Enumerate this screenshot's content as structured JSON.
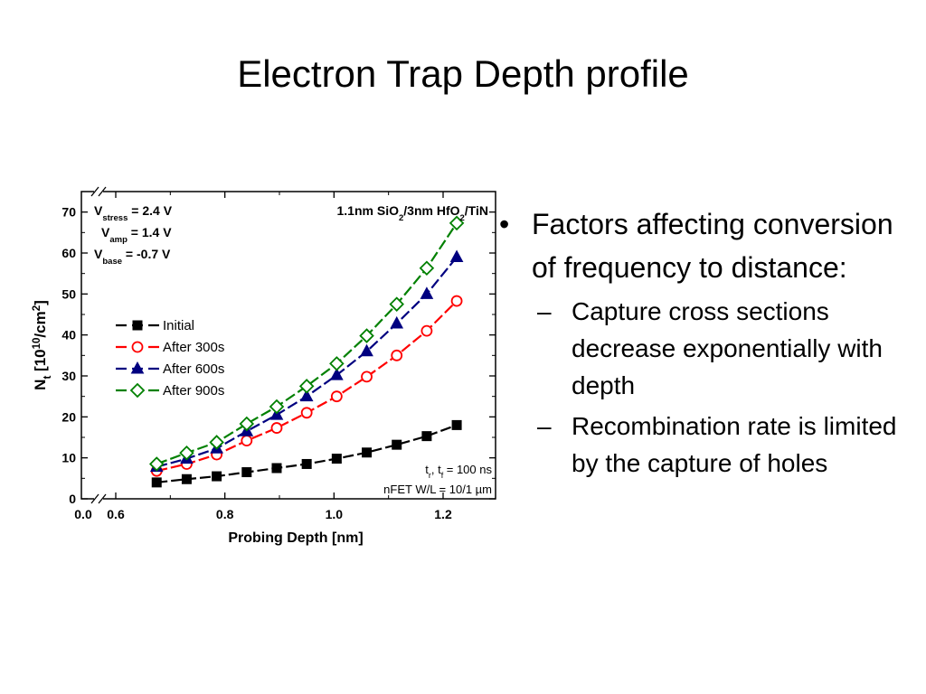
{
  "title": "Electron Trap Depth profile",
  "bullets": {
    "main": "Factors affecting conversion of frequency to distance:",
    "subs": [
      "Capture cross sections decrease exponentially with depth",
      "Recombination rate is limited by the capture of holes"
    ]
  },
  "chart_data": {
    "type": "line",
    "xlabel": "Probing Depth [nm]",
    "ylabel": {
      "main": "N",
      "sub": "t",
      "rest": " [10",
      "sup": "10",
      "unit": "/cm",
      "unit_sup": "2",
      "close": "]"
    },
    "xlim": [
      0.5,
      1.3
    ],
    "ylim": [
      0,
      75
    ],
    "x_axis_break": true,
    "y_axis_break": true,
    "x_ticks": [
      {
        "label": "0.0",
        "value": null
      },
      {
        "label": "0.6",
        "value": 0.6
      },
      {
        "label": "0.8",
        "value": 0.8
      },
      {
        "label": "1.0",
        "value": 1.0
      },
      {
        "label": "1.2",
        "value": 1.2
      }
    ],
    "y_ticks": [
      0,
      10,
      20,
      30,
      40,
      50,
      60,
      70
    ],
    "x": [
      0.675,
      0.73,
      0.785,
      0.84,
      0.895,
      0.95,
      1.005,
      1.06,
      1.115,
      1.17,
      1.225
    ],
    "series": [
      {
        "name": "Initial",
        "color": "#000000",
        "marker": "square-filled",
        "values": [
          4.0,
          4.8,
          5.5,
          6.5,
          7.5,
          8.5,
          9.8,
          11.3,
          13.2,
          15.3,
          18.0
        ]
      },
      {
        "name": "After 300s",
        "color": "#ff0000",
        "marker": "circle-open",
        "values": [
          6.8,
          8.5,
          10.8,
          14.2,
          17.3,
          21.0,
          25.0,
          29.8,
          35.0,
          41.0,
          48.3
        ]
      },
      {
        "name": "After 600s",
        "color": "#000080",
        "marker": "triangle-filled",
        "values": [
          7.8,
          9.8,
          12.3,
          16.5,
          20.5,
          25.0,
          30.2,
          36.0,
          42.8,
          50.0,
          59.0
        ]
      },
      {
        "name": "After 900s",
        "color": "#008000",
        "marker": "diamond-open",
        "values": [
          8.5,
          11.2,
          13.8,
          18.3,
          22.5,
          27.5,
          33.0,
          39.8,
          47.5,
          56.3,
          67.3
        ]
      }
    ],
    "legend_position": "center-left",
    "annotations": {
      "stress": [
        {
          "main": "V",
          "sub": "stress",
          "rest": " = 2.4 V"
        },
        {
          "main": "V",
          "sub": "amp",
          "rest": " = 1.4 V"
        },
        {
          "main": "V",
          "sub": "base",
          "rest": " = -0.7 V"
        }
      ],
      "device": {
        "p1": "1.1nm SiO",
        "s1": "2",
        "p2": "/3nm HfO",
        "s2": "2",
        "p3": "/TiN"
      },
      "timing": {
        "p1": "t",
        "s1": "r",
        "p2": ", t",
        "s2": "f",
        "p3": " = 100 ns"
      },
      "fet": "nFET W/L = 10/1 µm"
    }
  }
}
